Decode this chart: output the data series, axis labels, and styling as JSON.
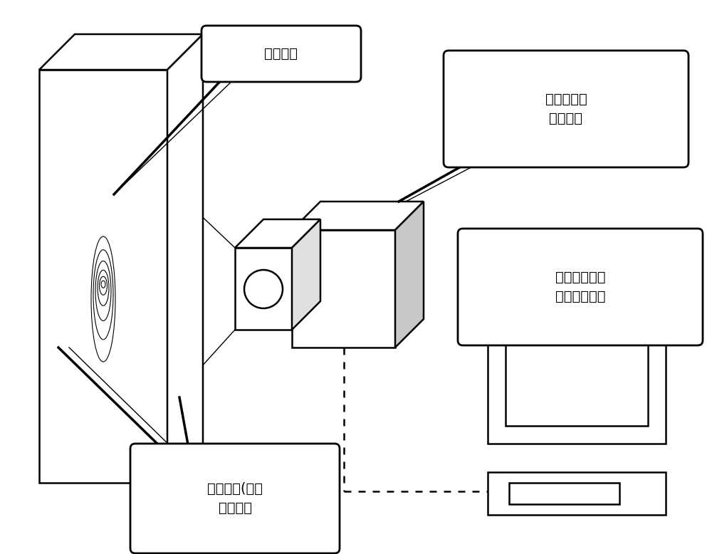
{
  "bg_color": "#ffffff",
  "line_color": "#000000",
  "label_leakage": "渗漏区域",
  "label_camera": "红外热成像\n摄像装置",
  "label_processor": "红外热成像处\n理分析处理器",
  "label_object": "被测物体(墙体\n或容器）",
  "font_size": 14
}
